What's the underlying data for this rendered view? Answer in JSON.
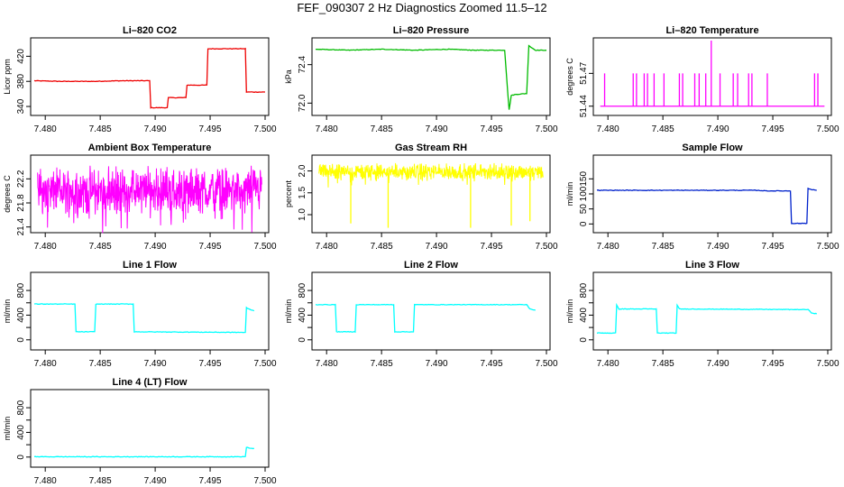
{
  "figure": {
    "title": "FEF_090307  2 Hz Diagnostics Zoomed 11.5–12"
  },
  "chart_data": [
    {
      "type": "line",
      "title": "Li–820 CO2",
      "ylabel": "Licor ppm",
      "color": "#ee0000",
      "xlim": [
        7.479,
        7.5
      ],
      "ylim": [
        330,
        445
      ],
      "xticks": [
        7.48,
        7.485,
        7.49,
        7.495,
        7.5
      ],
      "xticklabels": [
        "7.480",
        "7.485",
        "7.490",
        "7.495",
        "7.500"
      ],
      "yticks": [
        340,
        380,
        420
      ],
      "yticklabels": [
        "340",
        "380",
        "420"
      ],
      "x": [
        7.479,
        7.4815,
        7.4845,
        7.4868,
        7.4885,
        7.4895,
        7.4896,
        7.4911,
        7.4912,
        7.4928,
        7.4929,
        7.4947,
        7.4948,
        7.4982,
        7.4983,
        7.5
      ],
      "y": [
        381,
        380,
        380,
        381,
        381,
        381,
        338,
        338,
        354,
        354,
        374,
        374,
        432,
        432,
        363,
        363
      ]
    },
    {
      "type": "line",
      "title": "Li–820 Pressure",
      "ylabel": "kPa",
      "color": "#00bb00",
      "xlim": [
        7.479,
        7.5
      ],
      "ylim": [
        71.9,
        72.65
      ],
      "xticks": [
        7.48,
        7.485,
        7.49,
        7.495,
        7.5
      ],
      "xticklabels": [
        "7.480",
        "7.485",
        "7.490",
        "7.495",
        "7.500"
      ],
      "yticks": [
        72.0,
        72.4
      ],
      "yticklabels": [
        "72.0",
        "72.4"
      ],
      "x": [
        7.479,
        7.482,
        7.485,
        7.488,
        7.491,
        7.4935,
        7.4962,
        7.4966,
        7.4968,
        7.4972,
        7.4982,
        7.4984,
        7.4986,
        7.499,
        7.5
      ],
      "y": [
        72.56,
        72.55,
        72.56,
        72.55,
        72.56,
        72.55,
        72.55,
        71.93,
        72.08,
        72.09,
        72.1,
        72.6,
        72.58,
        72.55,
        72.55
      ]
    },
    {
      "type": "line",
      "title": "Li–820 Temperature",
      "ylabel": "degrees C",
      "color": "#ff00ff",
      "xlim": [
        7.479,
        7.5
      ],
      "ylim": [
        51.434,
        51.5
      ],
      "xticks": [
        7.48,
        7.485,
        7.49,
        7.495,
        7.5
      ],
      "xticklabels": [
        "7.480",
        "7.485",
        "7.490",
        "7.495",
        "7.500"
      ],
      "yticks": [
        51.44,
        51.47
      ],
      "yticklabels": [
        "51.44",
        "51.47"
      ],
      "baseline": 51.44,
      "spike_top": 51.47,
      "spikes": [
        7.4797,
        7.4823,
        7.4826,
        7.4833,
        7.4836,
        7.4842,
        7.4851,
        7.4865,
        7.4868,
        7.4879,
        7.4883,
        7.4889,
        7.4902,
        7.4914,
        7.4918,
        7.4928,
        7.4931,
        7.4945,
        7.4988,
        7.4991
      ],
      "big_spike": 7.4894,
      "big_spike_top": 51.5
    },
    {
      "type": "line",
      "title": "Ambient Box Temperature",
      "ylabel": "degrees C",
      "color": "#ff00ff",
      "xlim": [
        7.479,
        7.5
      ],
      "ylim": [
        21.35,
        22.55
      ],
      "xticks": [
        7.48,
        7.485,
        7.49,
        7.495,
        7.5
      ],
      "xticklabels": [
        "7.480",
        "7.485",
        "7.490",
        "7.495",
        "7.500"
      ],
      "yticks": [
        21.4,
        21.8,
        22.2
      ],
      "yticklabels": [
        "21.4",
        "21.8",
        "22.2"
      ],
      "noise_center": 22.0,
      "noise_low": 21.55,
      "noise_high": 22.45
    },
    {
      "type": "line",
      "title": "Gas Stream RH",
      "ylabel": "percent",
      "color": "#ffff00",
      "xlim": [
        7.479,
        7.5
      ],
      "ylim": [
        0.65,
        2.3
      ],
      "xticks": [
        7.48,
        7.485,
        7.49,
        7.495,
        7.5
      ],
      "xticklabels": [
        "7.480",
        "7.485",
        "7.490",
        "7.495",
        "7.500"
      ],
      "yticks": [
        1.0,
        1.5,
        2.0
      ],
      "yticklabels": [
        "1.0",
        "1.5",
        "2.0"
      ],
      "noise_center": 1.95,
      "noise_low": 1.75,
      "noise_high": 2.2,
      "dips": [
        7.4822,
        7.4856,
        7.4931,
        7.4968,
        7.4985
      ],
      "dip_lows": [
        0.8,
        0.7,
        0.7,
        0.75,
        0.85
      ]
    },
    {
      "type": "line",
      "title": "Sample Flow",
      "ylabel": "ml/min",
      "color": "#0022cc",
      "xlim": [
        7.479,
        7.5
      ],
      "ylim": [
        -20,
        220
      ],
      "xticks": [
        7.48,
        7.485,
        7.49,
        7.495,
        7.5
      ],
      "xticklabels": [
        "7.480",
        "7.485",
        "7.490",
        "7.495",
        "7.500"
      ],
      "yticks": [
        0,
        50,
        100,
        150
      ],
      "yticklabels": [
        "0",
        "50",
        "100",
        "150"
      ],
      "x": [
        7.479,
        7.482,
        7.486,
        7.49,
        7.4935,
        7.4945,
        7.4966,
        7.4967,
        7.4981,
        7.4982,
        7.4985,
        7.499
      ],
      "y": [
        112,
        112,
        112,
        112,
        112,
        110,
        110,
        2,
        2,
        118,
        115,
        112
      ]
    },
    {
      "type": "line",
      "title": "Line 1 Flow",
      "ylabel": "ml/min",
      "color": "#00ffff",
      "xlim": [
        7.479,
        7.5
      ],
      "ylim": [
        -120,
        1050
      ],
      "xticks": [
        7.48,
        7.485,
        7.49,
        7.495,
        7.5
      ],
      "xticklabels": [
        "7.480",
        "7.485",
        "7.490",
        "7.495",
        "7.500"
      ],
      "yticks": [
        0,
        200,
        400,
        600,
        800
      ],
      "yticklabels": [
        "0",
        "",
        "400",
        "",
        "800"
      ],
      "x": [
        7.479,
        7.4827,
        7.4828,
        7.4845,
        7.4846,
        7.488,
        7.4881,
        7.4982,
        7.4983,
        7.4985,
        7.499
      ],
      "y": [
        580,
        580,
        130,
        130,
        580,
        580,
        130,
        120,
        520,
        500,
        470
      ]
    },
    {
      "type": "line",
      "title": "Line 2 Flow",
      "ylabel": "ml/min",
      "color": "#00ffff",
      "xlim": [
        7.479,
        7.5
      ],
      "ylim": [
        -120,
        1050
      ],
      "xticks": [
        7.48,
        7.485,
        7.49,
        7.495,
        7.5
      ],
      "xticklabels": [
        "7.480",
        "7.485",
        "7.490",
        "7.495",
        "7.500"
      ],
      "yticks": [
        0,
        200,
        400,
        600,
        800
      ],
      "yticklabels": [
        "0",
        "",
        "400",
        "",
        "800"
      ],
      "x": [
        7.479,
        7.4808,
        7.4809,
        7.4826,
        7.4827,
        7.4861,
        7.4862,
        7.4879,
        7.488,
        7.4982,
        7.4985,
        7.499
      ],
      "y": [
        570,
        570,
        130,
        130,
        570,
        570,
        130,
        130,
        570,
        570,
        500,
        480
      ]
    },
    {
      "type": "line",
      "title": "Line 3 Flow",
      "ylabel": "ml/min",
      "color": "#00ffff",
      "xlim": [
        7.479,
        7.5
      ],
      "ylim": [
        -120,
        1050
      ],
      "xticks": [
        7.48,
        7.485,
        7.49,
        7.495,
        7.5
      ],
      "xticklabels": [
        "7.480",
        "7.485",
        "7.490",
        "7.495",
        "7.500"
      ],
      "yticks": [
        0,
        200,
        400,
        600,
        800
      ],
      "yticklabels": [
        "0",
        "",
        "400",
        "",
        "800"
      ],
      "x": [
        7.479,
        7.4807,
        7.4808,
        7.481,
        7.4844,
        7.4845,
        7.4862,
        7.4863,
        7.4865,
        7.4982,
        7.4985,
        7.499
      ],
      "y": [
        110,
        110,
        560,
        500,
        500,
        110,
        110,
        560,
        500,
        490,
        440,
        420
      ]
    },
    {
      "type": "line",
      "title": "Line 4 (LT) Flow",
      "ylabel": "ml/min",
      "color": "#00ffff",
      "xlim": [
        7.479,
        7.5
      ],
      "ylim": [
        -120,
        1050
      ],
      "xticks": [
        7.48,
        7.485,
        7.49,
        7.495,
        7.5
      ],
      "xticklabels": [
        "7.480",
        "7.485",
        "7.490",
        "7.495",
        "7.500"
      ],
      "yticks": [
        0,
        200,
        400,
        600,
        800
      ],
      "yticklabels": [
        "0",
        "",
        "400",
        "",
        "800"
      ],
      "x": [
        7.479,
        7.4845,
        7.49,
        7.4982,
        7.4983,
        7.4987,
        7.499
      ],
      "y": [
        5,
        5,
        5,
        5,
        160,
        140,
        140
      ]
    }
  ]
}
